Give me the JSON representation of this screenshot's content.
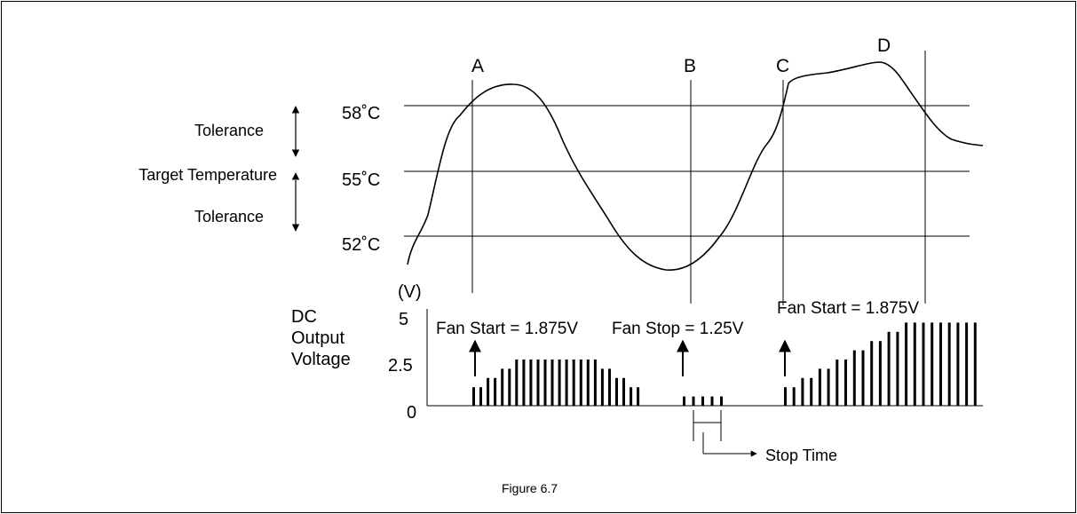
{
  "labels": {
    "tolerance_upper": "Tolerance",
    "target_temperature": "Target Temperature",
    "tolerance_lower": "Tolerance",
    "temp_58": "58˚C",
    "temp_55": "55˚C",
    "temp_52": "52˚C",
    "point_a": "A",
    "point_b": "B",
    "point_c": "C",
    "point_d": "D",
    "volts_unit": "(V)",
    "dc_line1": "DC",
    "dc_line2": "Output",
    "dc_line3": "Voltage",
    "volt_5": "5",
    "volt_2_5": "2.5",
    "volt_0": "0",
    "fan_start_1": "Fan Start = 1.875V",
    "fan_stop": "Fan Stop = 1.25V",
    "fan_start_2": "Fan Start = 1.875V",
    "stop_time": "Stop Time",
    "figure_caption": "Figure 6.7"
  },
  "voltage_bars": [
    {
      "segment": "A-B",
      "levels_v": [
        1.0,
        1.0,
        1.5,
        1.5,
        2.0,
        2.0,
        2.5,
        2.5,
        2.5,
        2.5,
        2.5,
        2.5,
        2.5,
        2.5,
        2.5,
        2.5,
        2.5,
        2.5,
        2.0,
        2.0,
        1.5,
        1.5,
        1.0,
        1.0
      ]
    },
    {
      "segment": "stop",
      "levels_v": [
        0.5,
        0.5,
        0.5,
        0.5,
        0.5
      ]
    },
    {
      "segment": "C-end",
      "levels_v": [
        1.0,
        1.0,
        1.5,
        1.5,
        2.0,
        2.0,
        2.5,
        2.5,
        3.0,
        3.0,
        3.5,
        3.5,
        4.0,
        4.0,
        4.5,
        4.5,
        4.5,
        4.5,
        4.5,
        4.5,
        4.5,
        4.5,
        4.5
      ]
    }
  ],
  "colors": {
    "line": "#000000",
    "background": "#ffffff"
  }
}
